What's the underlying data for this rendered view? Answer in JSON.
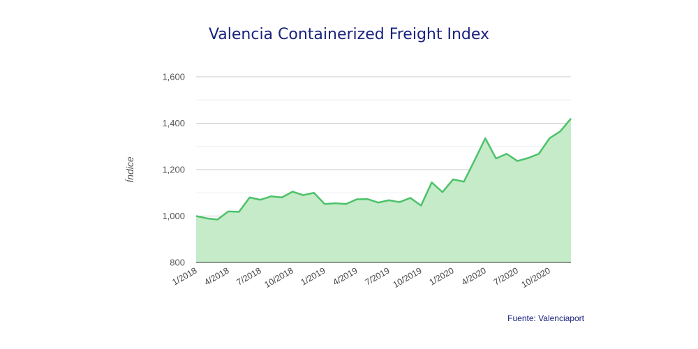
{
  "chart_data": {
    "type": "area",
    "title": "Valencia Containerized Freight Index",
    "ylabel": "Índice",
    "xlabel": "",
    "source": "Fuente: Valenciaport",
    "ylim": [
      800,
      1600
    ],
    "yticks": [
      "800",
      "1,000",
      "1,200",
      "1,400",
      "1,600"
    ],
    "ytick_values": [
      800,
      1000,
      1200,
      1400,
      1600
    ],
    "x_labels": [
      "1/2018",
      "4/2018",
      "7/2018",
      "10/2018",
      "1/2019",
      "4/2019",
      "7/2019",
      "10/2019",
      "1/2020",
      "4/2020",
      "7/2020",
      "10/2020"
    ],
    "grid": true,
    "series": [
      {
        "values": [
          1000,
          990,
          985,
          1020,
          1018,
          1080,
          1070,
          1085,
          1080,
          1105,
          1090,
          1100,
          1052,
          1055,
          1052,
          1072,
          1073,
          1058,
          1068,
          1060,
          1078,
          1045,
          1145,
          1103,
          1158,
          1148,
          1240,
          1335,
          1248,
          1268,
          1237,
          1250,
          1268,
          1335,
          1365,
          1420
        ],
        "color": "#4cc26a",
        "fill": "#c6ebc9"
      }
    ]
  }
}
